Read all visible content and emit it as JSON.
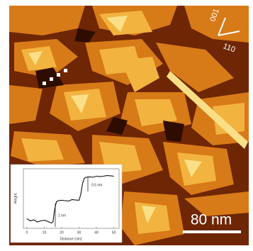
{
  "image": {
    "scale_bar": "80 nm",
    "directions": [
      "001",
      "110"
    ]
  },
  "chart_data": {
    "type": "line",
    "x": [
      0,
      2,
      4,
      6,
      8,
      10,
      12,
      14,
      15,
      16,
      17,
      18,
      20,
      22,
      24,
      26,
      28,
      30,
      31,
      32,
      33,
      34,
      36,
      38,
      40,
      42,
      44,
      46,
      48,
      50
    ],
    "series": [
      {
        "name": "Height",
        "color": "#111111",
        "values": [
          0.15,
          0.05,
          0.1,
          0.0,
          0.05,
          0.08,
          0.02,
          -0.05,
          0.0,
          0.6,
          0.95,
          1.0,
          1.02,
          1.0,
          0.98,
          1.05,
          1.03,
          1.02,
          1.3,
          1.8,
          2.05,
          2.1,
          2.12,
          2.1,
          2.15,
          2.13,
          2.15,
          2.18,
          2.17,
          2.15
        ]
      }
    ],
    "xlim": [
      -2,
      53
    ],
    "xticks": [
      0,
      10,
      20,
      30,
      40,
      50
    ],
    "ylim": [
      -0.3,
      2.5
    ],
    "xlabel": "Distance (nm)",
    "ylabel": "Height",
    "annotations": [
      "1 nm",
      "0.5 nm"
    ]
  }
}
